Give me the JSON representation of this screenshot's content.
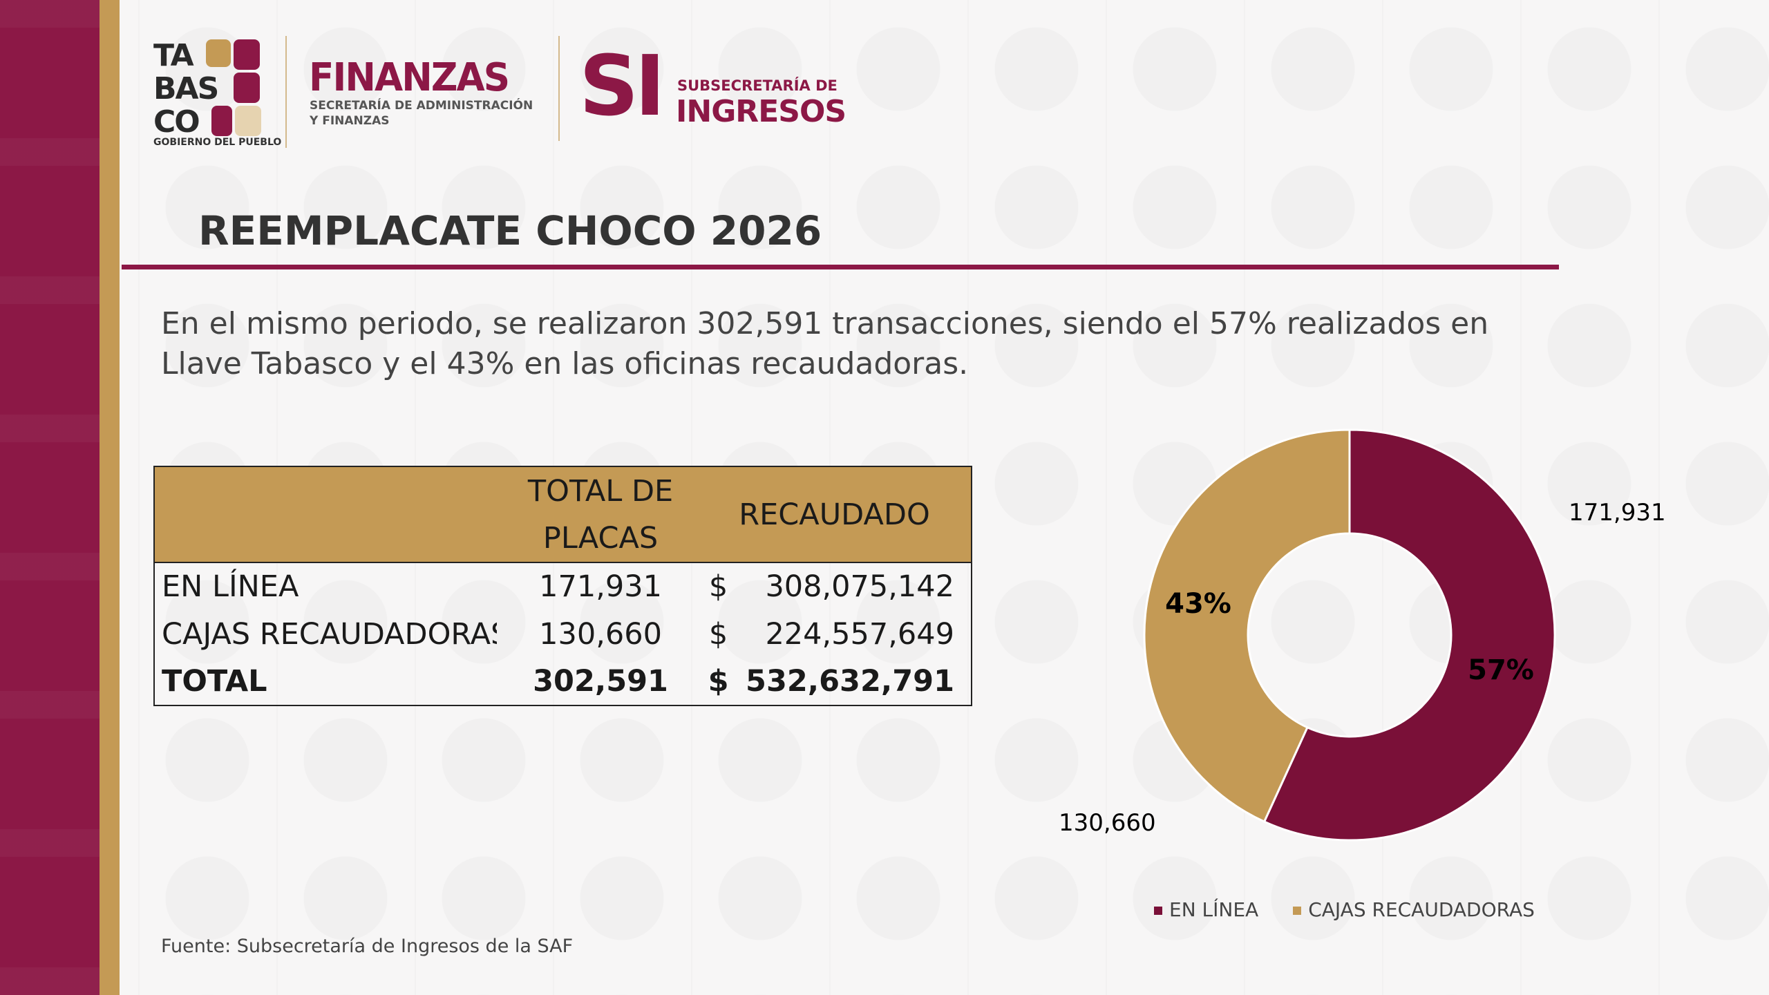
{
  "header": {
    "tabasco_logo": {
      "lines": [
        "TA",
        "BAS",
        "CO"
      ],
      "tagline": "GOBIERNO DEL PUEBLO"
    },
    "finanzas_logo": {
      "name": "FINANZAS",
      "sub1": "SECRETARÍA DE ADMINISTRACIÓN",
      "sub2": "Y FINANZAS"
    },
    "si_logo": {
      "mark": "SI",
      "line1": "SUBSECRETARÍA DE",
      "line2": "INGRESOS"
    }
  },
  "title": "REEMPLACATE CHOCO 2026",
  "description": "En el mismo periodo, se realizaron 302,591 transacciones, siendo el 57% realizados en Llave Tabasco y el 43% en las oficinas recaudadoras.",
  "table": {
    "headers": [
      "",
      "TOTAL DE PLACAS",
      "RECAUDADO"
    ],
    "rows": [
      {
        "label": "EN LÍNEA",
        "placas": "171,931",
        "currency": "$",
        "recaudado": "308,075,142"
      },
      {
        "label": "CAJAS RECAUDADORAS",
        "placas": "130,660",
        "currency": "$",
        "recaudado": "224,557,649"
      }
    ],
    "total": {
      "label": "TOTAL",
      "placas": "302,591",
      "currency": "$",
      "recaudado": "532,632,791"
    }
  },
  "chart_data": {
    "type": "pie",
    "donut": true,
    "categories": [
      "EN LÍNEA",
      "CAJAS RECAUDADORAS"
    ],
    "values": [
      171931,
      130660
    ],
    "value_labels": [
      "171,931",
      "130,660"
    ],
    "percent_labels": [
      "57%",
      "43%"
    ],
    "colors": [
      "#7a1038",
      "#c49a55"
    ],
    "legend": "bottom-right"
  },
  "source": "Fuente: Subsecretaría de Ingresos de la SAF",
  "colors": {
    "maroon": "#8c1846",
    "gold": "#c49a55"
  }
}
